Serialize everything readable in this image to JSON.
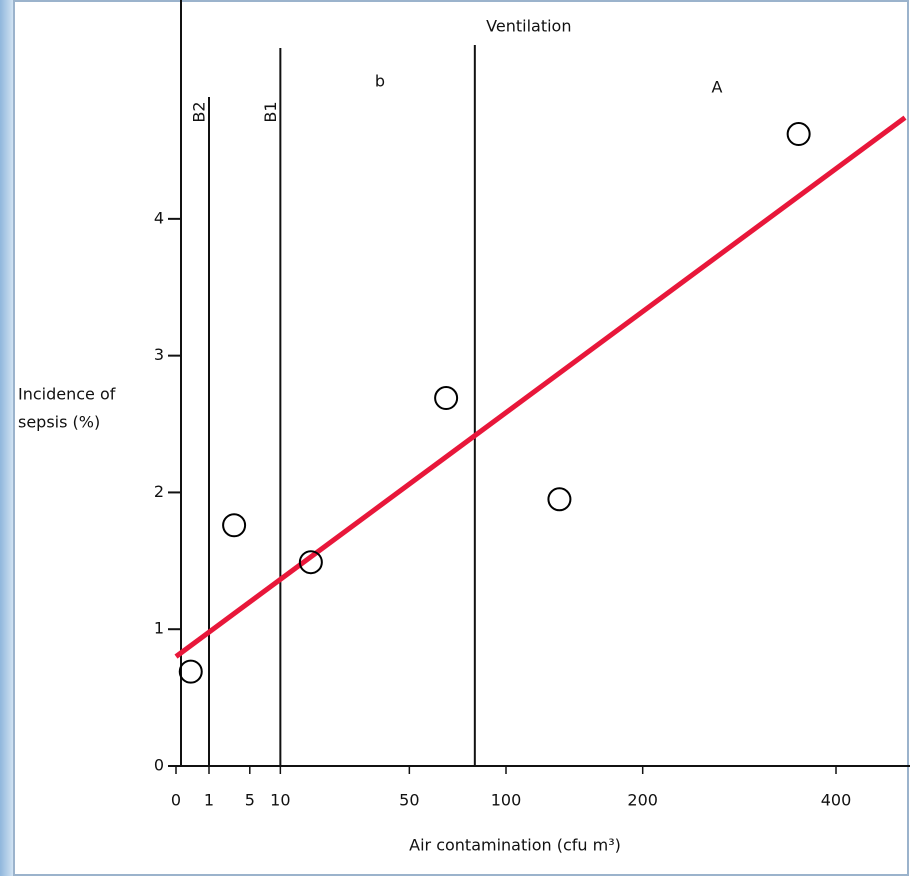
{
  "chart_data": {
    "type": "scatter",
    "x_label": "Air contamination (cfu m³)",
    "y_label": [
      "Incidence of",
      "sepsis (%)"
    ],
    "x": [
      0.2,
      3.1,
      16.7,
      67,
      135,
      356
    ],
    "values": [
      0.69,
      1.76,
      1.49,
      2.69,
      1.95,
      4.62
    ],
    "marker_color": "#000000",
    "xscale": "sqrt",
    "xlim": [
      0,
      488
    ],
    "ylim": [
      0,
      5.6
    ],
    "xticks": [
      0,
      1,
      5,
      10,
      50,
      100,
      200,
      400
    ],
    "yticks": [
      0,
      1,
      2,
      3,
      4
    ],
    "fit_line": {
      "x": [
        0,
        488
      ],
      "values": [
        0.8,
        4.74
      ],
      "color": "#e8173a"
    },
    "reference_lines": [
      {
        "x": 1,
        "label": "B2"
      },
      {
        "x": 10,
        "label": "B1"
      },
      {
        "x": 82,
        "label": "Ventilation"
      }
    ],
    "region_labels": [
      "b",
      "A"
    ]
  }
}
